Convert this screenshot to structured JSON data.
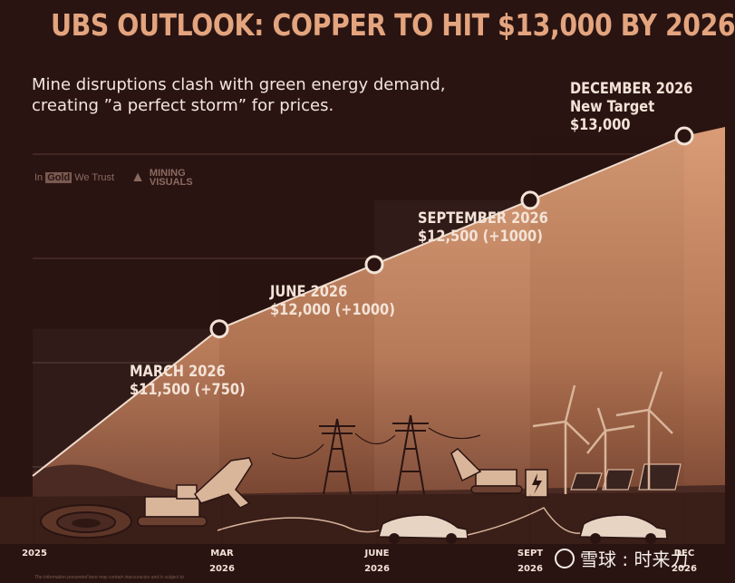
{
  "header": {
    "title": "UBS OUTLOOK: COPPER TO HIT $13,000 BY 2026",
    "subtitle_line1": "Mine disruptions clash with green energy demand,",
    "subtitle_line2": "creating ”a perfect storm” for prices."
  },
  "logos": {
    "gold_pre": "In",
    "gold_box": "Gold",
    "gold_post": "We Trust",
    "mv_line1": "MINING",
    "mv_line2": "VISUALS"
  },
  "footnote": "The information presented here may contain inaccuracies and is subject to",
  "watermark": "雪球 : 时来力",
  "colors": {
    "background": "#2a1412",
    "title": "#e3a47e",
    "area": "#a86a4a",
    "area_light": "#d69a74",
    "text": "#f3e3d7"
  },
  "chart_data": {
    "type": "area",
    "title": "UBS OUTLOOK: COPPER TO HIT $13,000 BY 2026",
    "x_ticks": [
      {
        "line1": "2025",
        "line2": ""
      },
      {
        "line1": "MAR",
        "line2": "2026"
      },
      {
        "line1": "JUNE",
        "line2": "2026"
      },
      {
        "line1": "SEPT",
        "line2": "2026"
      },
      {
        "line1": "DEC",
        "line2": "2026"
      }
    ],
    "points": [
      {
        "x": "MAR 2026",
        "y": 11500,
        "line1": "MARCH 2026",
        "line2": "$11,500 (+750)",
        "line3": ""
      },
      {
        "x": "JUNE 2026",
        "y": 12000,
        "line1": "JUNE 2026",
        "line2": "$12,000 (+1000)",
        "line3": ""
      },
      {
        "x": "SEPT 2026",
        "y": 12500,
        "line1": "SEPTEMBER 2026",
        "line2": "$12,500 (+1000)",
        "line3": ""
      },
      {
        "x": "DEC 2026",
        "y": 13000,
        "line1": "DECEMBER 2026",
        "line2": "New Target",
        "line3": "$13,000"
      }
    ],
    "grid": true,
    "legend": "none"
  }
}
